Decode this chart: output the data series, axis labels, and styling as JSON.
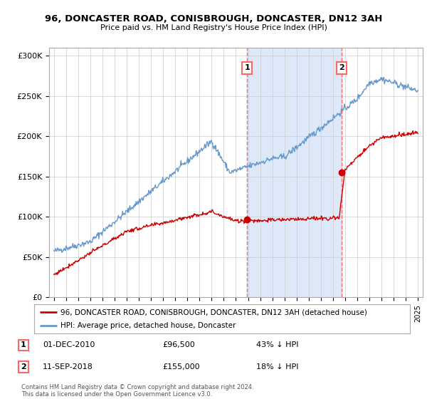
{
  "title": "96, DONCASTER ROAD, CONISBROUGH, DONCASTER, DN12 3AH",
  "subtitle": "Price paid vs. HM Land Registry's House Price Index (HPI)",
  "background_color": "#ffffff",
  "plot_bg_color": "#ffffff",
  "ylabel_ticks": [
    "£0",
    "£50K",
    "£100K",
    "£150K",
    "£200K",
    "£250K",
    "£300K"
  ],
  "ytick_values": [
    0,
    50000,
    100000,
    150000,
    200000,
    250000,
    300000
  ],
  "ylim": [
    0,
    310000
  ],
  "xlim_start": 1994.6,
  "xlim_end": 2025.4,
  "marker1_x": 2010.92,
  "marker1_y": 96500,
  "marker1_label": "1",
  "marker1_date": "01-DEC-2010",
  "marker1_price": "£96,500",
  "marker1_pct": "43% ↓ HPI",
  "marker2_x": 2018.7,
  "marker2_y": 155000,
  "marker2_label": "2",
  "marker2_date": "11-SEP-2018",
  "marker2_price": "£155,000",
  "marker2_pct": "18% ↓ HPI",
  "legend_line1": "96, DONCASTER ROAD, CONISBROUGH, DONCASTER, DN12 3AH (detached house)",
  "legend_line2": "HPI: Average price, detached house, Doncaster",
  "footer": "Contains HM Land Registry data © Crown copyright and database right 2024.\nThis data is licensed under the Open Government Licence v3.0.",
  "red_color": "#cc0000",
  "blue_color": "#6699cc",
  "vline_color": "#ff6666",
  "span_color": "#dde8f8",
  "grid_color": "#cccccc",
  "label_box_color": "#ff6666"
}
